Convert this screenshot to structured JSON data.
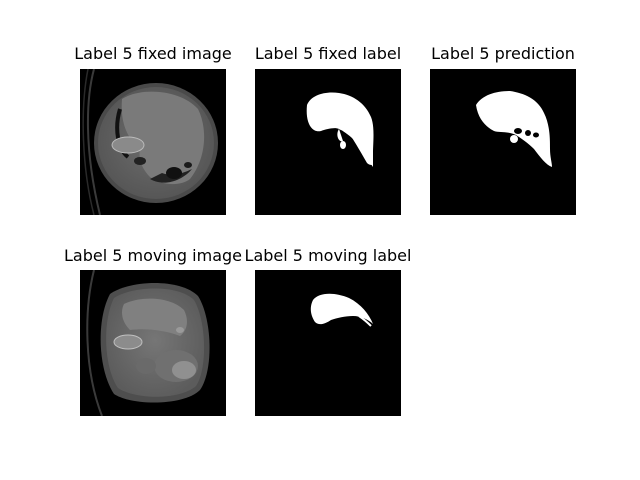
{
  "figure": {
    "panels": [
      {
        "title": "Label 5 fixed image"
      },
      {
        "title": "Label 5 fixed label"
      },
      {
        "title": "Label 5 prediction"
      },
      {
        "title": "Label 5 moving image"
      },
      {
        "title": "Label 5 moving label"
      }
    ]
  }
}
